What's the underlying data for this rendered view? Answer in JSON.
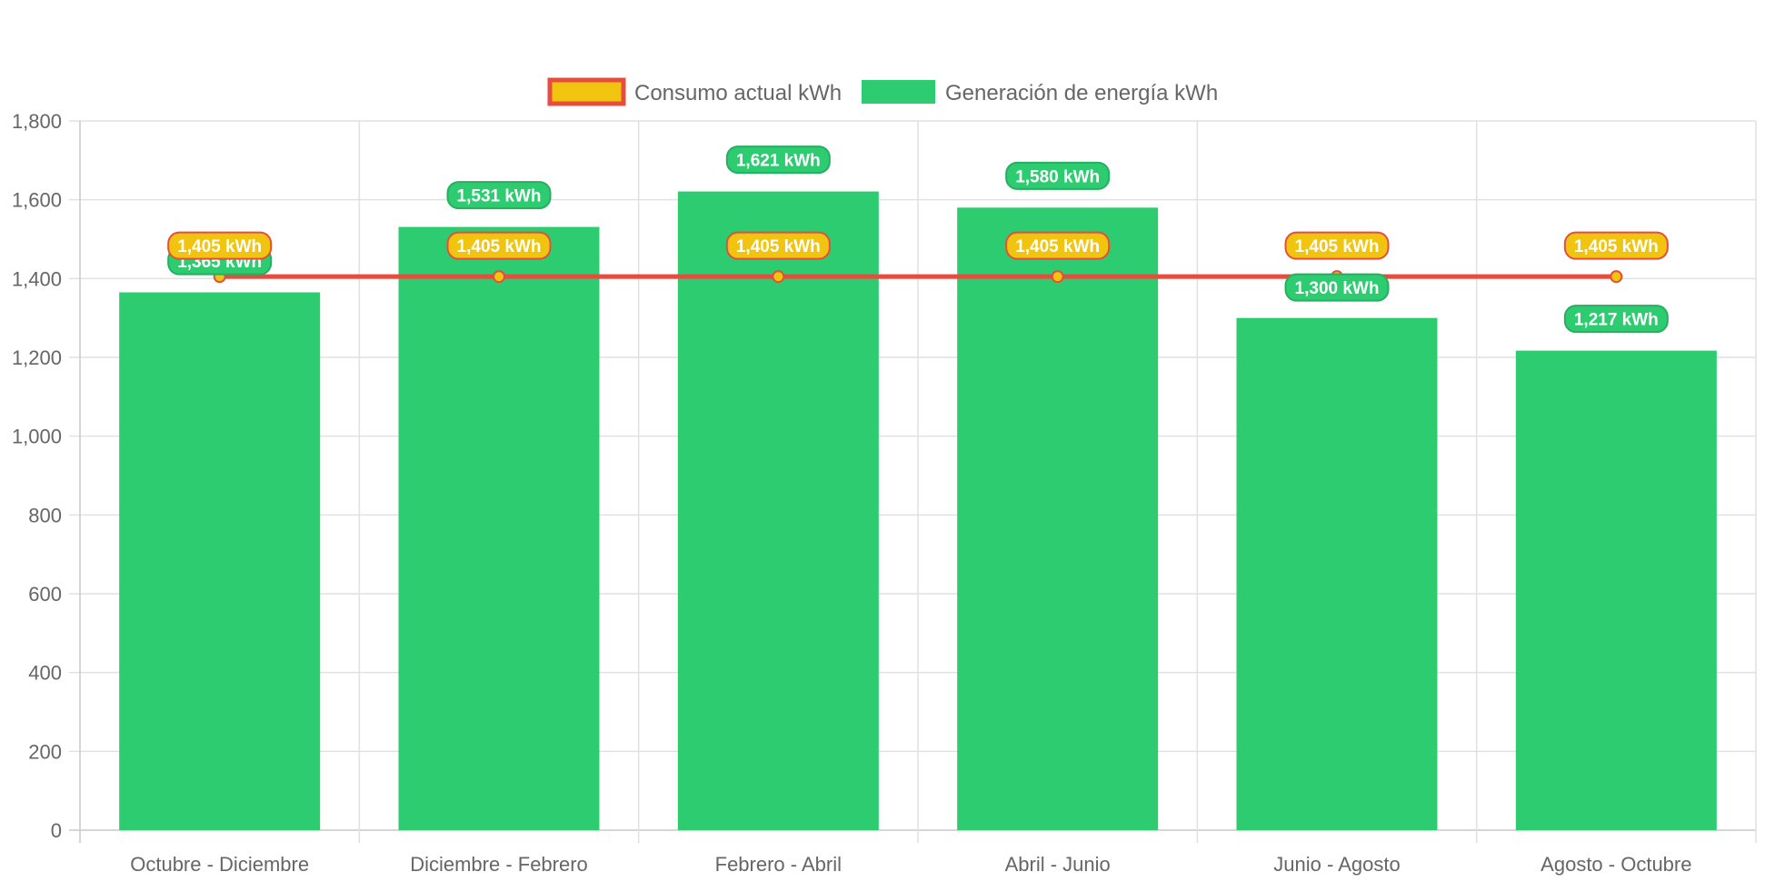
{
  "chart_data": {
    "type": "bar",
    "categories": [
      "Octubre - Diciembre",
      "Diciembre - Febrero",
      "Febrero - Abril",
      "Abril - Junio",
      "Junio - Agosto",
      "Agosto - Octubre"
    ],
    "series": [
      {
        "name": "Generación de energía kWh",
        "type": "bar",
        "values": [
          1365,
          1531,
          1621,
          1580,
          1300,
          1217
        ],
        "data_labels": [
          "1,365 kWh",
          "1,531 kWh",
          "1,621 kWh",
          "1,580 kWh",
          "1,300 kWh",
          "1,217 kWh"
        ],
        "color": "#2ecc71"
      },
      {
        "name": "Consumo actual kWh",
        "type": "line",
        "values": [
          1405,
          1405,
          1405,
          1405,
          1405,
          1405
        ],
        "data_labels": [
          "1,405 kWh",
          "1,405 kWh",
          "1,405 kWh",
          "1,405 kWh",
          "1,405 kWh",
          "1,405 kWh"
        ],
        "color": "#e74c3c",
        "fill_color": "#f1c40f"
      }
    ],
    "ylim": [
      0,
      1800
    ],
    "yticks": [
      0,
      200,
      400,
      600,
      800,
      1000,
      1200,
      1400,
      1600,
      1800
    ],
    "ytick_labels": [
      "0",
      "200",
      "400",
      "600",
      "800",
      "1,000",
      "1,200",
      "1,400",
      "1,600",
      "1,800"
    ],
    "legend": {
      "position": "top",
      "entries": [
        "Consumo actual kWh",
        "Generación de energía kWh"
      ]
    },
    "grid": true
  }
}
